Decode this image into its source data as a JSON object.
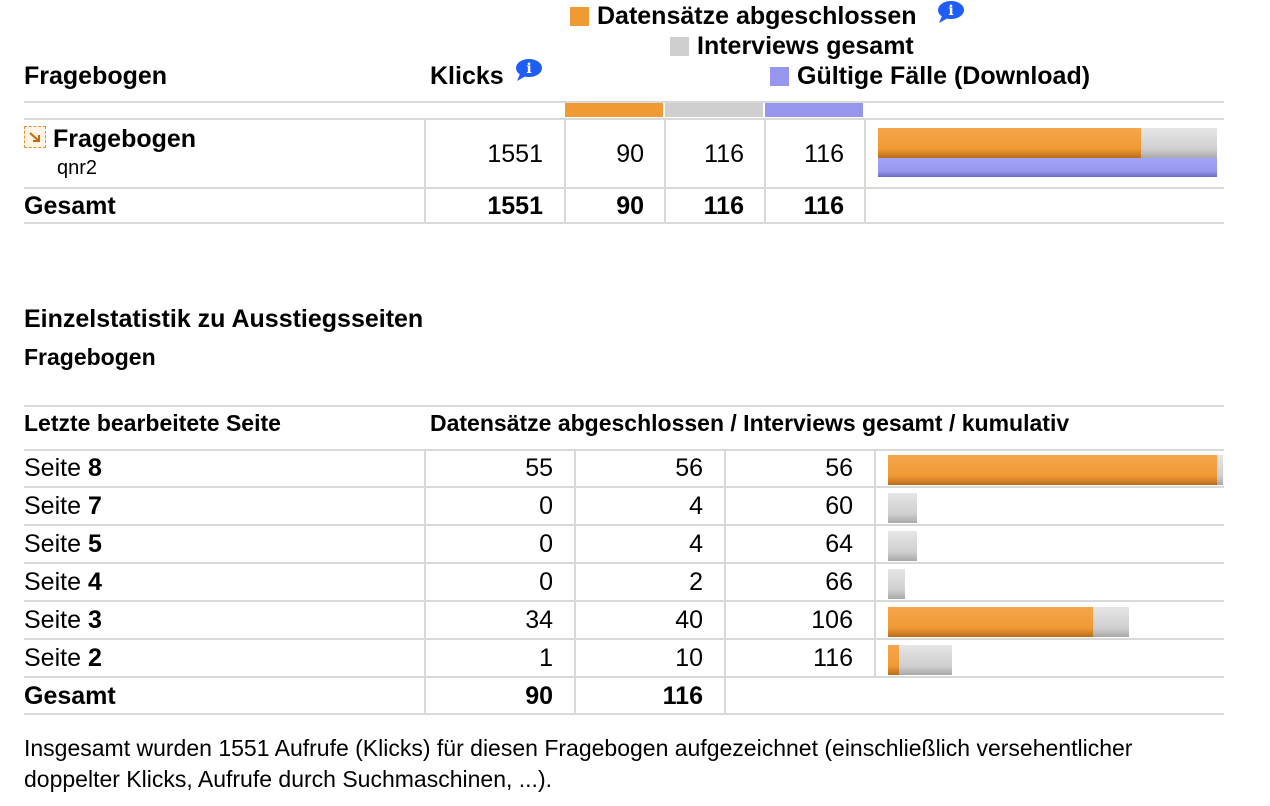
{
  "legend": {
    "completed_label": "Datensätze abgeschlossen",
    "interviews_label": "Interviews gesamt",
    "valid_label": "Gültige Fälle (Download)"
  },
  "colors": {
    "completed": "#f09a34",
    "interviews": "#cfcfcf",
    "valid": "#9696ee",
    "grid": "#d9d9d9"
  },
  "summary": {
    "col_questionnaire": "Fragebogen",
    "col_clicks": "Klicks",
    "row": {
      "name": "Fragebogen",
      "id": "qnr2",
      "clicks": "1551",
      "completed": "90",
      "interviews": "116",
      "valid": "116"
    },
    "total": {
      "label": "Gesamt",
      "clicks": "1551",
      "completed": "90",
      "interviews": "116",
      "valid": "116"
    }
  },
  "section_title": "Einzelstatistik zu Ausstiegsseiten",
  "section_subtitle": "Fragebogen",
  "exit_table": {
    "col_page": "Letzte bearbeitete Seite",
    "col_stats": "Datensätze abgeschlossen / Interviews gesamt / kumulativ",
    "page_prefix": "Seite",
    "rows": [
      {
        "page": "8",
        "completed": "55",
        "interviews": "56",
        "cumulative": "56"
      },
      {
        "page": "7",
        "completed": "0",
        "interviews": "4",
        "cumulative": "60"
      },
      {
        "page": "5",
        "completed": "0",
        "interviews": "4",
        "cumulative": "64"
      },
      {
        "page": "4",
        "completed": "0",
        "interviews": "2",
        "cumulative": "66"
      },
      {
        "page": "3",
        "completed": "34",
        "interviews": "40",
        "cumulative": "106"
      },
      {
        "page": "2",
        "completed": "1",
        "interviews": "10",
        "cumulative": "116"
      }
    ],
    "total": {
      "label": "Gesamt",
      "completed": "90",
      "interviews": "116"
    }
  },
  "footer_text": "Insgesamt wurden 1551 Aufrufe (Klicks) für diesen Fragebogen aufgezeichnet (einschließlich versehentlicher doppelter Klicks, Aufrufe durch Suchmaschinen, ...).",
  "icons": [
    "info-icon",
    "questionnaire-icon"
  ]
}
